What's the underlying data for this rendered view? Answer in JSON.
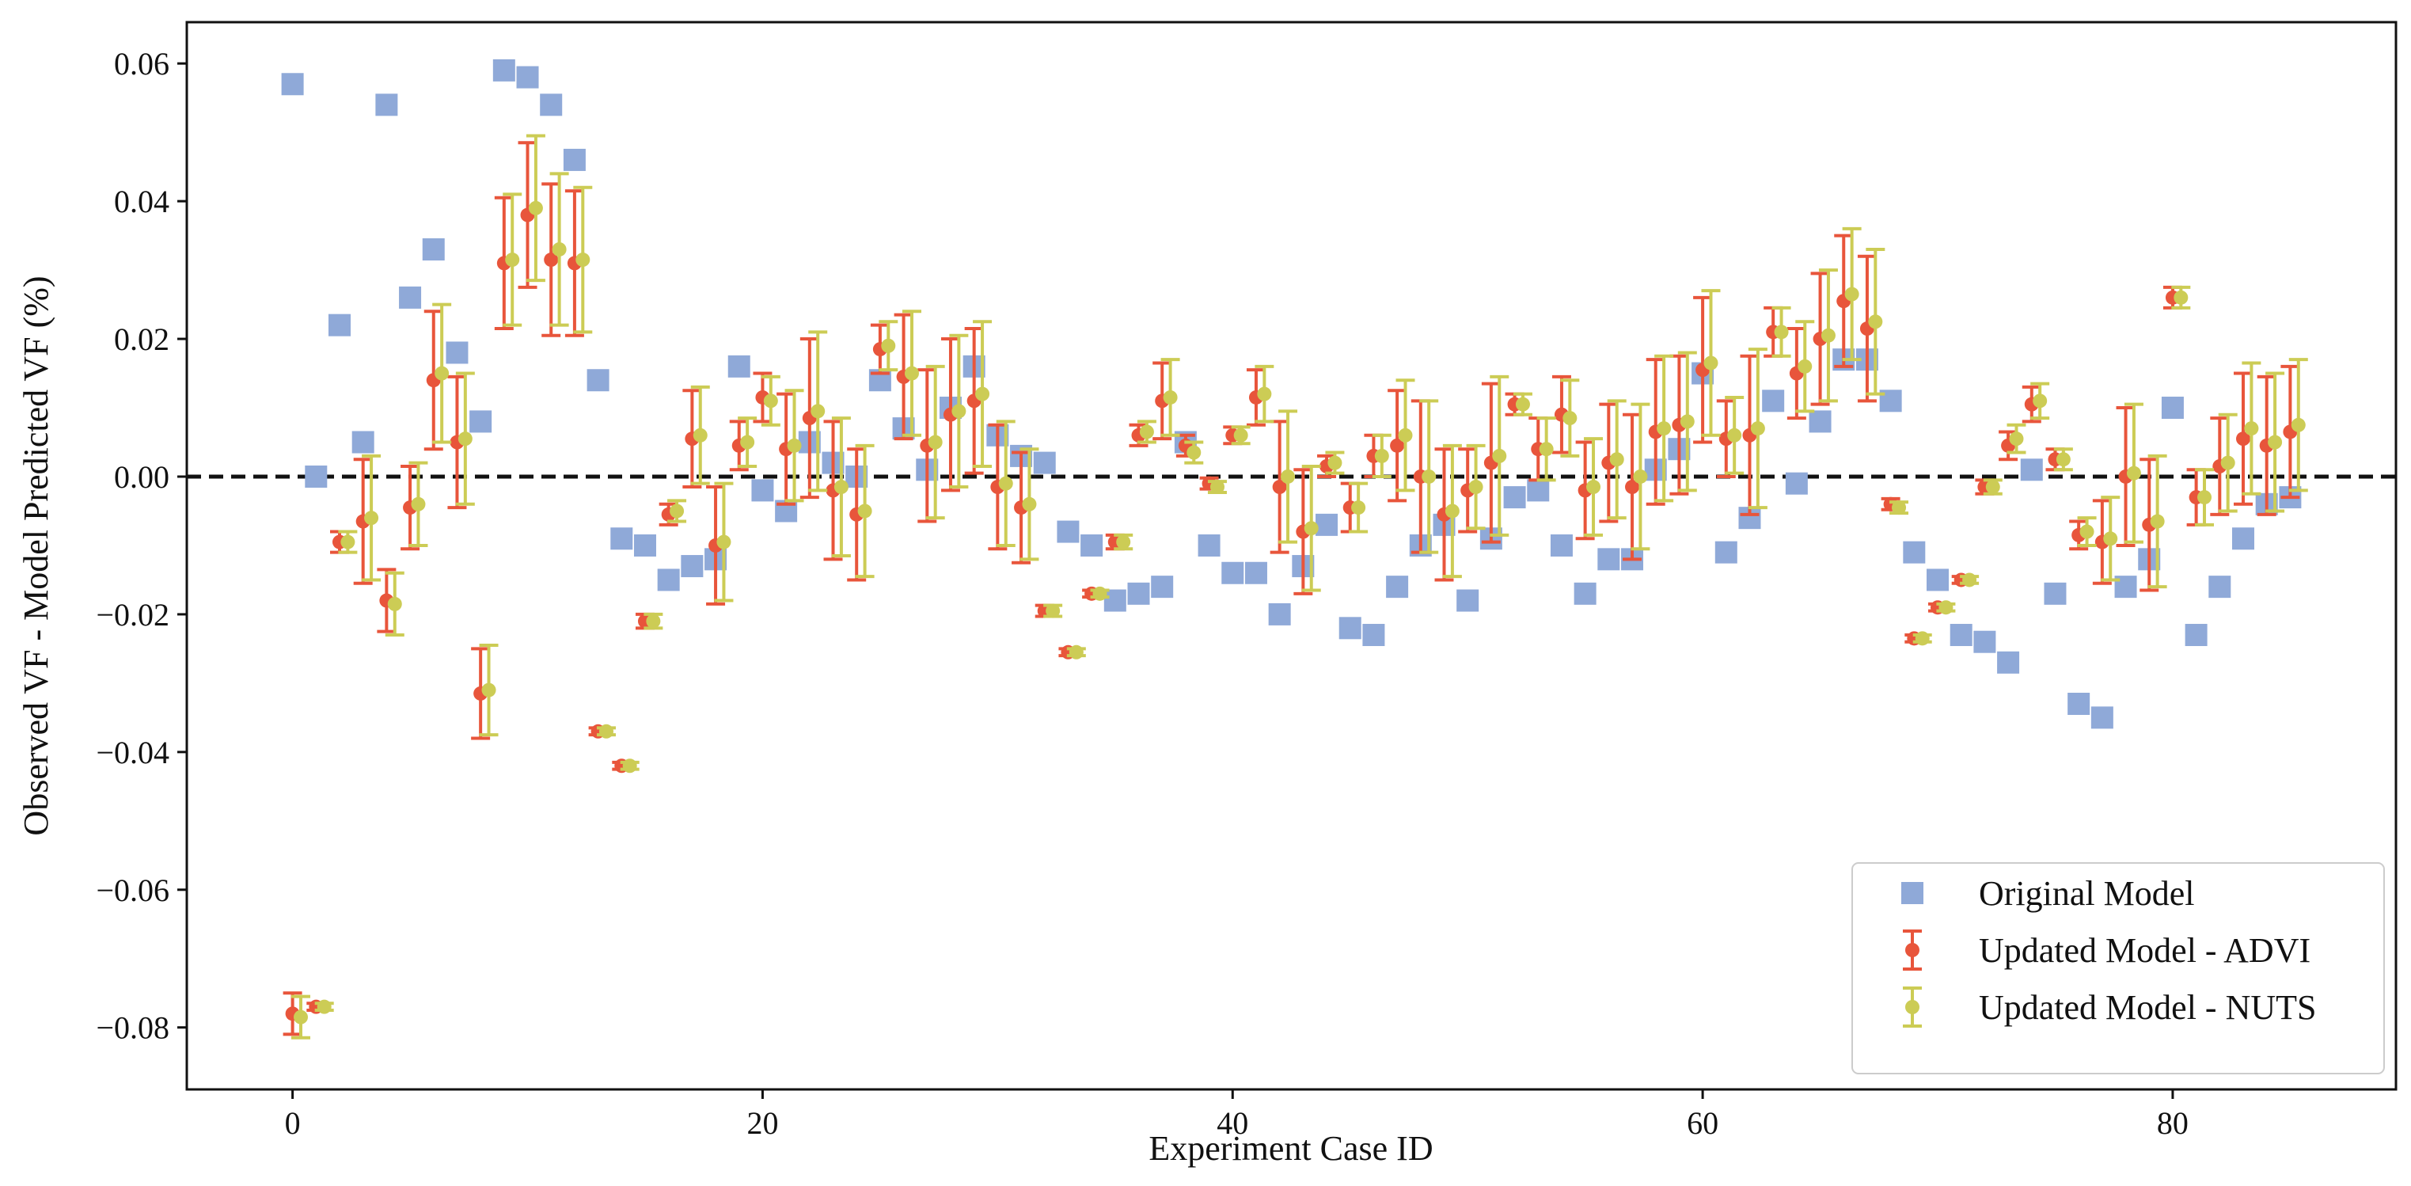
{
  "chart_data": {
    "type": "scatter",
    "title": "",
    "xlabel": "Experiment Case ID",
    "ylabel": "Observed VF - Model Predicted VF (%)",
    "xlim": [
      -4.5,
      89.5
    ],
    "ylim": [
      -0.089,
      0.066
    ],
    "xticks": [
      0,
      20,
      40,
      60,
      80
    ],
    "yticks": [
      0.06,
      0.04,
      0.02,
      0.0,
      -0.02,
      -0.04,
      -0.06,
      -0.08
    ],
    "ytick_labels": [
      "0.06",
      "0.04",
      "0.02",
      "0.00",
      "−0.02",
      "−0.04",
      "−0.06",
      "−0.08"
    ],
    "reference_line": {
      "y": 0.0,
      "style": "dashed",
      "color": "#111111"
    },
    "legend": {
      "position": "lower-right"
    },
    "colors": {
      "original": "#8fa9d8",
      "advi": "#e8553b",
      "nuts": "#cccc55"
    },
    "series": [
      {
        "name": "Original Model",
        "marker": "square",
        "x": [
          0,
          1,
          2,
          3,
          4,
          5,
          6,
          7,
          8,
          9,
          10,
          11,
          12,
          13,
          14,
          15,
          16,
          17,
          18,
          19,
          20,
          21,
          22,
          23,
          24,
          25,
          26,
          27,
          28,
          29,
          30,
          31,
          32,
          33,
          34,
          35,
          36,
          37,
          38,
          39,
          40,
          41,
          42,
          43,
          44,
          45,
          46,
          47,
          48,
          49,
          50,
          51,
          52,
          53,
          54,
          55,
          56,
          57,
          58,
          59,
          60,
          61,
          62,
          63,
          64,
          65,
          66,
          67,
          68,
          69,
          70,
          71,
          72,
          73,
          74,
          75,
          76,
          77,
          78,
          79,
          80,
          81,
          82,
          83,
          84,
          85
        ],
        "y": [
          0.057,
          0.0,
          0.022,
          0.005,
          0.054,
          0.026,
          0.033,
          0.018,
          0.008,
          0.059,
          0.058,
          0.054,
          0.046,
          0.014,
          -0.009,
          -0.01,
          -0.015,
          -0.013,
          -0.012,
          0.016,
          -0.002,
          -0.005,
          0.005,
          0.002,
          0.0,
          0.014,
          0.007,
          0.001,
          0.01,
          0.016,
          0.006,
          0.003,
          0.002,
          -0.008,
          -0.01,
          -0.018,
          -0.017,
          -0.016,
          0.005,
          -0.01,
          -0.014,
          -0.014,
          -0.02,
          -0.013,
          -0.007,
          -0.022,
          -0.023,
          -0.016,
          -0.01,
          -0.007,
          -0.018,
          -0.009,
          -0.003,
          -0.002,
          -0.01,
          -0.017,
          -0.012,
          -0.012,
          0.001,
          0.004,
          0.015,
          -0.011,
          -0.006,
          0.011,
          -0.001,
          0.008,
          0.017,
          0.017,
          0.011,
          -0.011,
          -0.015,
          -0.023,
          -0.024,
          -0.027,
          0.001,
          -0.017,
          -0.033,
          -0.035,
          -0.016,
          -0.012,
          0.01,
          -0.023,
          -0.016,
          -0.009,
          -0.004,
          -0.003
        ]
      },
      {
        "name": "Updated Model - ADVI",
        "marker": "circle",
        "x": [
          0,
          1,
          2,
          3,
          4,
          5,
          6,
          7,
          8,
          9,
          10,
          11,
          12,
          13,
          14,
          15,
          16,
          17,
          18,
          19,
          20,
          21,
          22,
          23,
          24,
          25,
          26,
          27,
          28,
          29,
          30,
          31,
          32,
          33,
          34,
          35,
          36,
          37,
          38,
          39,
          40,
          41,
          42,
          43,
          44,
          45,
          46,
          47,
          48,
          49,
          50,
          51,
          52,
          53,
          54,
          55,
          56,
          57,
          58,
          59,
          60,
          61,
          62,
          63,
          64,
          65,
          66,
          67,
          68,
          69,
          70,
          71,
          72,
          73,
          74,
          75,
          76,
          77,
          78,
          79,
          80,
          81,
          82,
          83,
          84,
          85
        ],
        "y": [
          -0.078,
          -0.077,
          -0.0095,
          -0.0065,
          -0.018,
          -0.0045,
          0.014,
          0.005,
          -0.0315,
          0.031,
          0.038,
          0.0315,
          0.031,
          -0.037,
          -0.042,
          -0.021,
          -0.0055,
          0.0055,
          -0.01,
          0.0045,
          0.0115,
          0.004,
          0.0085,
          -0.002,
          -0.0055,
          0.0185,
          0.0145,
          0.0045,
          0.009,
          0.011,
          -0.0015,
          -0.0045,
          -0.0195,
          -0.0255,
          -0.017,
          -0.0095,
          0.006,
          0.011,
          0.0045,
          -0.001,
          0.006,
          0.0115,
          -0.0015,
          -0.008,
          0.0015,
          -0.0045,
          0.003,
          0.0045,
          0.0,
          -0.0055,
          -0.002,
          0.002,
          0.0105,
          0.004,
          0.009,
          -0.002,
          0.002,
          -0.0015,
          0.0065,
          0.0075,
          0.0155,
          0.0055,
          0.006,
          0.021,
          0.015,
          0.02,
          0.0255,
          0.0215,
          -0.004,
          -0.0235,
          -0.019,
          -0.015,
          -0.0015,
          0.0045,
          0.0105,
          0.0025,
          -0.0085,
          -0.0095,
          0.0,
          -0.007,
          0.026,
          -0.003,
          0.0015,
          0.0055,
          0.0045,
          0.0065
        ],
        "error": [
          0.003,
          0.0005,
          0.0015,
          0.009,
          0.0045,
          0.006,
          0.01,
          0.0095,
          0.0065,
          0.0095,
          0.0105,
          0.011,
          0.0105,
          0.0005,
          0.0005,
          0.001,
          0.0015,
          0.007,
          0.0085,
          0.0035,
          0.0035,
          0.008,
          0.0115,
          0.01,
          0.0095,
          0.0035,
          0.009,
          0.011,
          0.011,
          0.0105,
          0.009,
          0.008,
          0.0008,
          0.0005,
          0.0005,
          0.001,
          0.0015,
          0.0055,
          0.0015,
          0.0008,
          0.0012,
          0.004,
          0.0095,
          0.009,
          0.0015,
          0.0035,
          0.003,
          0.008,
          0.011,
          0.0095,
          0.006,
          0.0115,
          0.0015,
          0.0045,
          0.0055,
          0.007,
          0.0085,
          0.0105,
          0.0105,
          0.01,
          0.0105,
          0.0055,
          0.0115,
          0.0035,
          0.0065,
          0.0095,
          0.0095,
          0.0105,
          0.0008,
          0.0005,
          0.0005,
          0.0005,
          0.001,
          0.002,
          0.0025,
          0.0015,
          0.002,
          0.006,
          0.01,
          0.0095,
          0.0015,
          0.004,
          0.007,
          0.0095,
          0.01,
          0.0095
        ]
      },
      {
        "name": "Updated Model - NUTS",
        "marker": "circle",
        "x": [
          0,
          1,
          2,
          3,
          4,
          5,
          6,
          7,
          8,
          9,
          10,
          11,
          12,
          13,
          14,
          15,
          16,
          17,
          18,
          19,
          20,
          21,
          22,
          23,
          24,
          25,
          26,
          27,
          28,
          29,
          30,
          31,
          32,
          33,
          34,
          35,
          36,
          37,
          38,
          39,
          40,
          41,
          42,
          43,
          44,
          45,
          46,
          47,
          48,
          49,
          50,
          51,
          52,
          53,
          54,
          55,
          56,
          57,
          58,
          59,
          60,
          61,
          62,
          63,
          64,
          65,
          66,
          67,
          68,
          69,
          70,
          71,
          72,
          73,
          74,
          75,
          76,
          77,
          78,
          79,
          80,
          81,
          82,
          83,
          84,
          85
        ],
        "y": [
          -0.0785,
          -0.077,
          -0.0095,
          -0.006,
          -0.0185,
          -0.004,
          0.015,
          0.0055,
          -0.031,
          0.0315,
          0.039,
          0.033,
          0.0315,
          -0.037,
          -0.042,
          -0.021,
          -0.005,
          0.006,
          -0.0095,
          0.005,
          0.011,
          0.0045,
          0.0095,
          -0.0015,
          -0.005,
          0.019,
          0.015,
          0.005,
          0.0095,
          0.012,
          -0.001,
          -0.004,
          -0.0195,
          -0.0255,
          -0.017,
          -0.0095,
          0.0065,
          0.0115,
          0.0035,
          -0.0015,
          0.006,
          0.012,
          0.0,
          -0.0075,
          0.002,
          -0.0045,
          0.003,
          0.006,
          0.0,
          -0.005,
          -0.0015,
          0.003,
          0.0105,
          0.004,
          0.0085,
          -0.0015,
          0.0025,
          0.0,
          0.007,
          0.008,
          0.0165,
          0.006,
          0.007,
          0.021,
          0.016,
          0.0205,
          0.0265,
          0.0225,
          -0.0045,
          -0.0235,
          -0.019,
          -0.015,
          -0.0015,
          0.0055,
          0.011,
          0.0025,
          -0.008,
          -0.009,
          0.0005,
          -0.0065,
          0.026,
          -0.003,
          0.002,
          0.007,
          0.005,
          0.0075
        ]
      }
    ]
  }
}
